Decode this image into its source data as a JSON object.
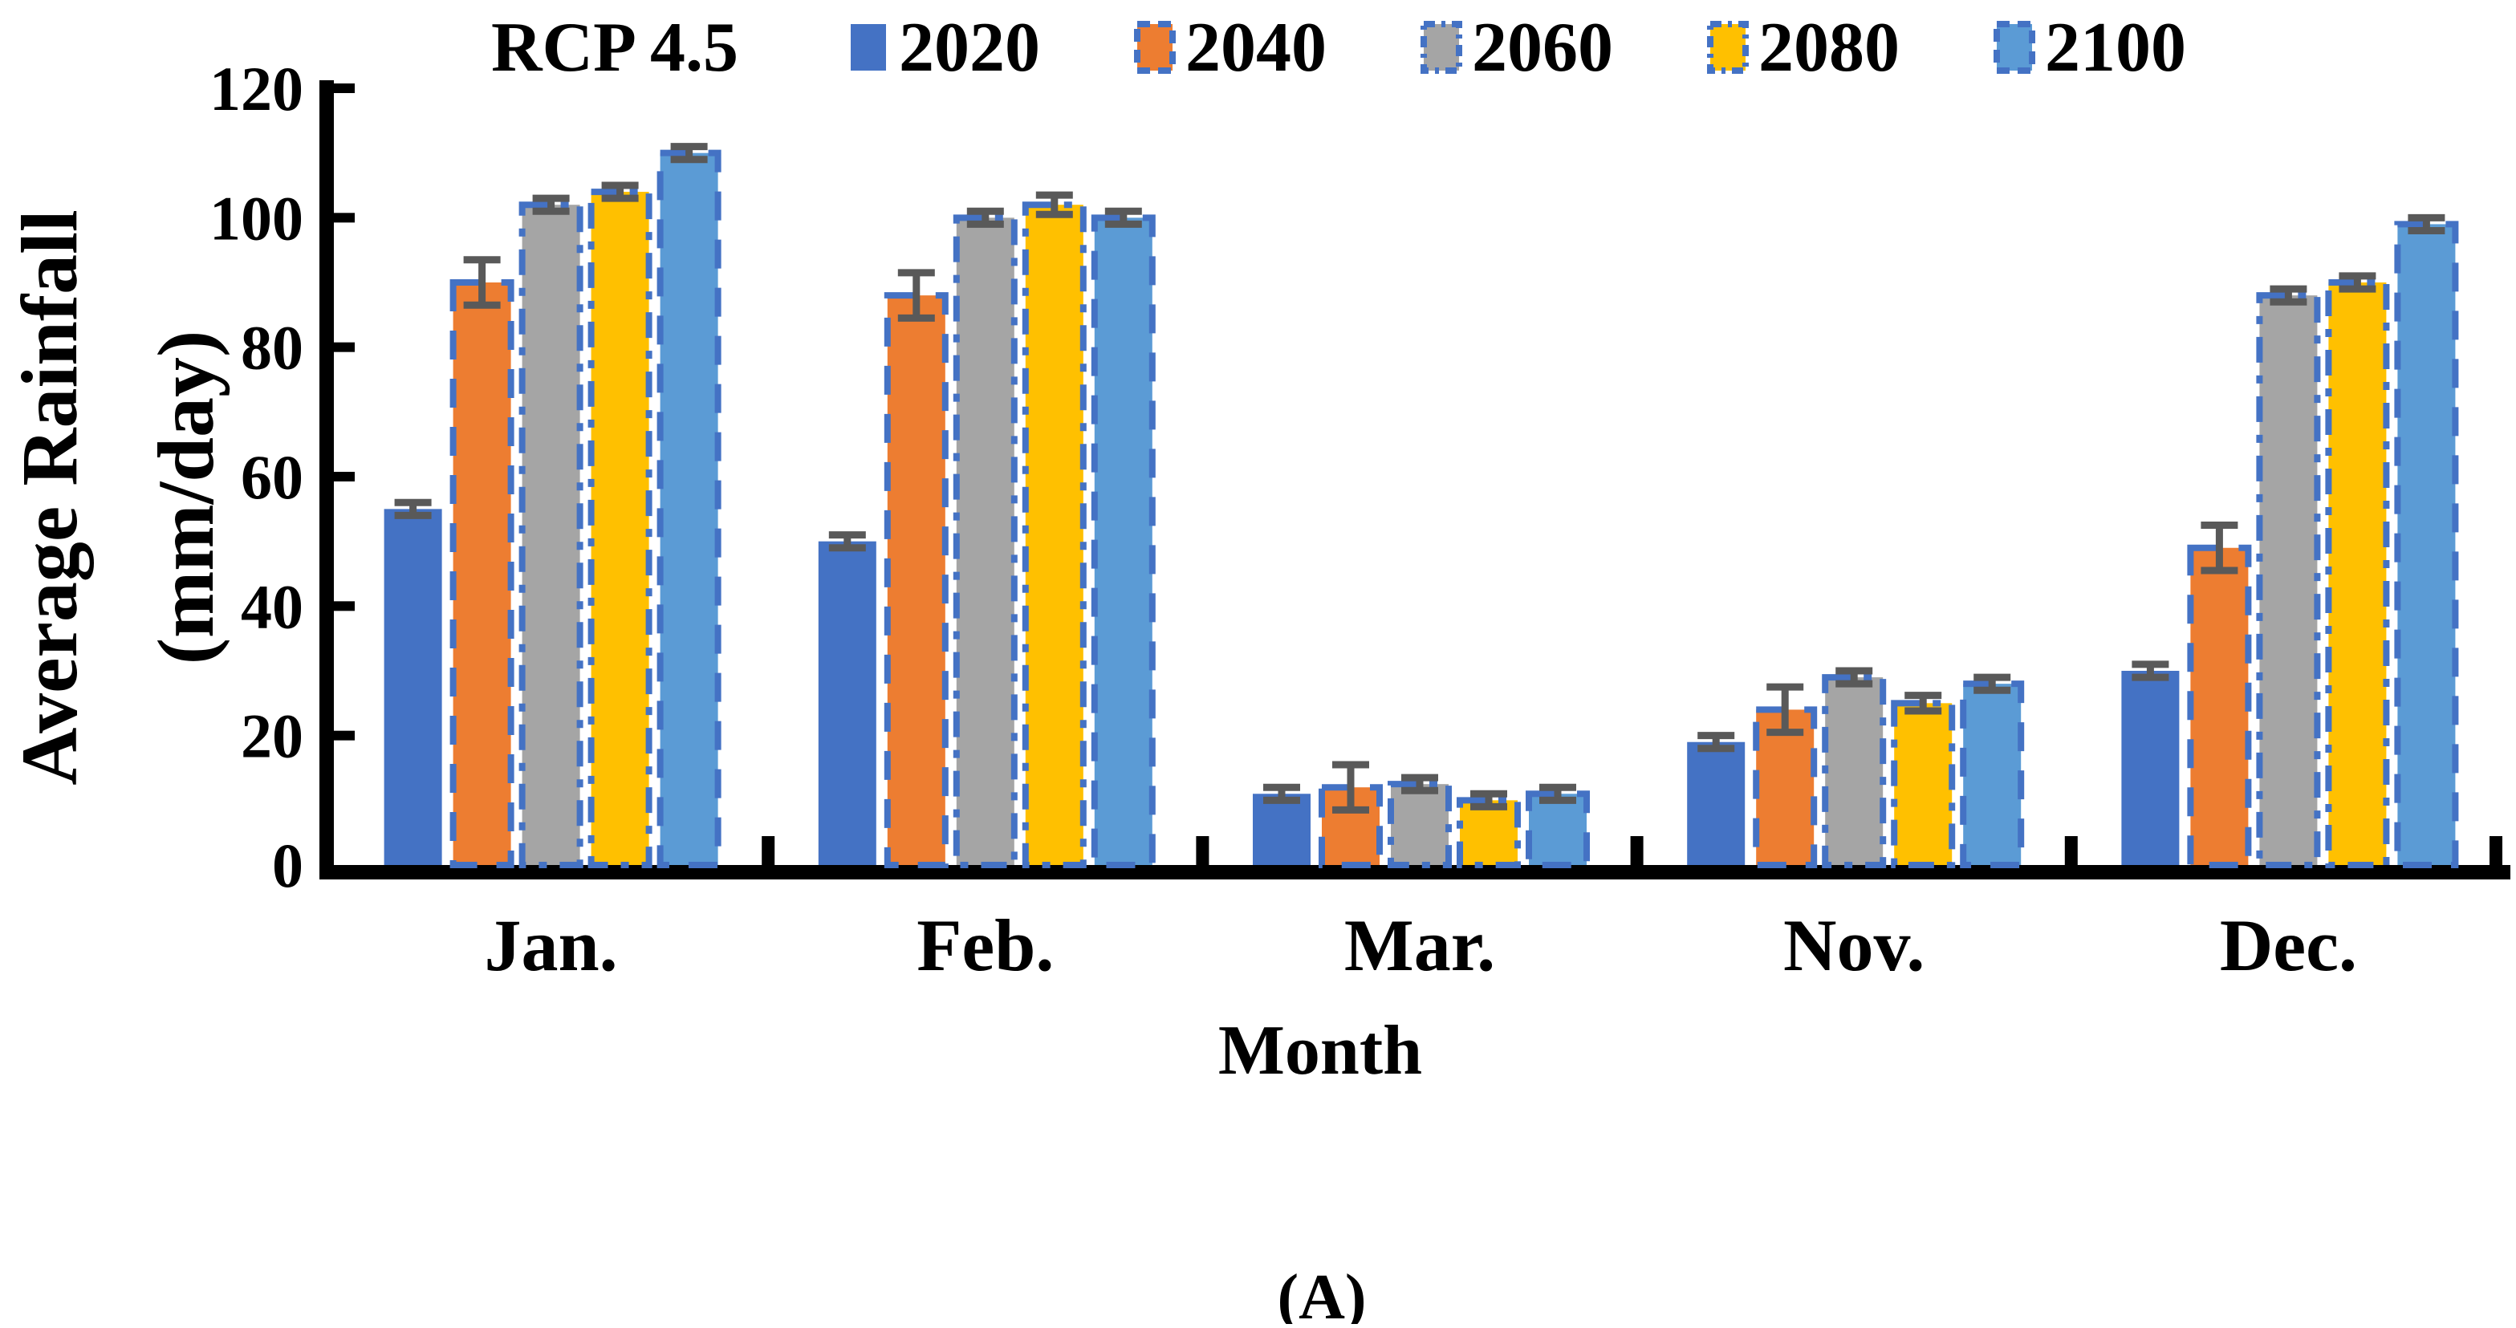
{
  "header": {
    "title": "RCP 4.5"
  },
  "axis": {
    "y_label_line1": "Average Rainfall",
    "y_label_line2": "(mm/day)",
    "x_label": "Month",
    "y_ticks": [
      "0",
      "20",
      "40",
      "60",
      "80",
      "100",
      "120"
    ]
  },
  "caption": {
    "label": "(A)"
  },
  "colors": {
    "axis": "#000000",
    "error_bar": "#595959",
    "bar_border": "#4472C4",
    "background": "#FFFFFF"
  },
  "chart_data": {
    "type": "bar",
    "title": "RCP 4.5",
    "xlabel": "Month",
    "ylabel": "Average Rainfall (mm/day)",
    "ylim": [
      0,
      120
    ],
    "ytick_step": 20,
    "grid": false,
    "legend_position": "top",
    "error_bars": true,
    "categories": [
      "Jan.",
      "Feb.",
      "Mar.",
      "Nov.",
      "Dec."
    ],
    "series": [
      {
        "name": "2020",
        "color": "#4472C4",
        "border": "none",
        "values": [
          55,
          50,
          11,
          19,
          30
        ],
        "errors": [
          1,
          1,
          1,
          1,
          1
        ]
      },
      {
        "name": "2040",
        "color": "#ED7D31",
        "border": "dash",
        "values": [
          90,
          88,
          12,
          24,
          49
        ],
        "errors": [
          3.5,
          3.5,
          3.5,
          3.5,
          3.5
        ]
      },
      {
        "name": "2060",
        "color": "#A5A5A5",
        "border": "dash-dot",
        "values": [
          102,
          100,
          12.5,
          29,
          88
        ],
        "errors": [
          1,
          1,
          1,
          1,
          1
        ]
      },
      {
        "name": "2080",
        "color": "#FFC000",
        "border": "dash-dot",
        "values": [
          104,
          102,
          10,
          25,
          90
        ],
        "errors": [
          1,
          1.5,
          1,
          1.2,
          1
        ]
      },
      {
        "name": "2100",
        "color": "#5B9BD5",
        "border": "dash",
        "values": [
          110,
          100,
          11,
          28,
          99
        ],
        "errors": [
          1,
          1,
          1,
          1,
          1
        ]
      }
    ]
  }
}
